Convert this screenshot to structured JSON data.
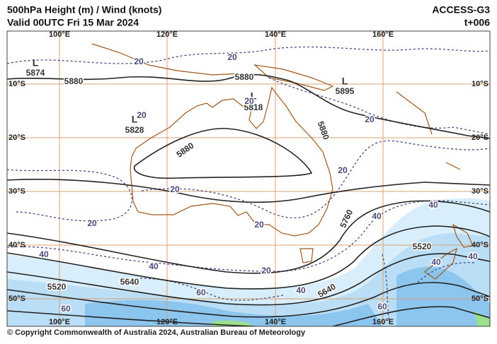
{
  "header": {
    "title": "500hPa Height (m) / Wind (knots)",
    "valid": "Valid 00UTC Fri 15 Mar 2024",
    "model": "ACCESS-G3",
    "step": "t+006"
  },
  "map": {
    "lon_labels": [
      "100°E",
      "120°E",
      "140°E",
      "160°E"
    ],
    "lat_labels": [
      "10°S",
      "20°S",
      "30°S",
      "40°S",
      "50°S"
    ],
    "lows": [
      "L",
      "L",
      "L",
      "L"
    ],
    "height_labels": [
      "5874",
      "5880",
      "5880",
      "5895",
      "5818",
      "5828",
      "5880",
      "5880",
      "5760",
      "5520",
      "5640",
      "5640",
      "5520"
    ],
    "wind_labels": [
      "20",
      "20",
      "20",
      "20",
      "20",
      "20",
      "20",
      "20",
      "20",
      "20",
      "40",
      "40",
      "40",
      "40",
      "40",
      "40",
      "40",
      "60",
      "60",
      "60"
    ]
  },
  "footer": "© Copyright Commonwealth of Australia 2024, Australian Bureau of Meteorology"
}
